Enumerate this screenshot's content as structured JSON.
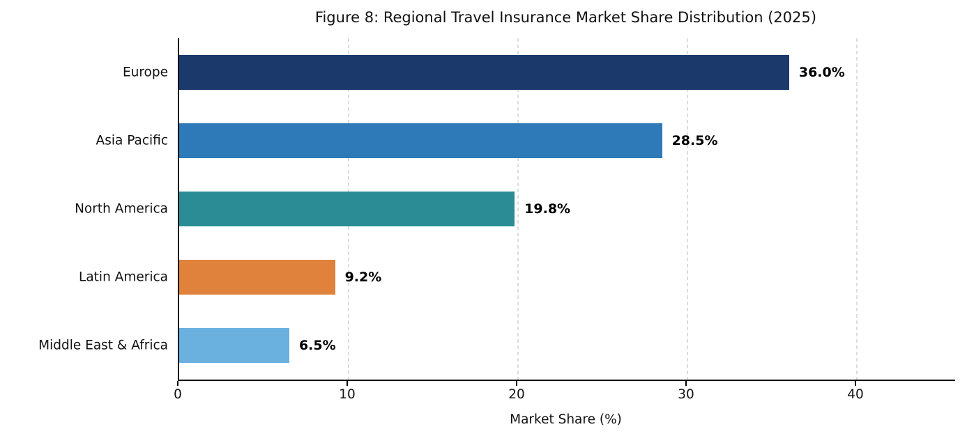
{
  "chart_data": {
    "type": "bar",
    "orientation": "horizontal",
    "title": "Figure 8: Regional Travel Insurance Market Share Distribution (2025)",
    "xlabel": "Market Share (%)",
    "ylabel": "",
    "categories": [
      "Europe",
      "Asia Pacific",
      "North America",
      "Latin America",
      "Middle East & Africa"
    ],
    "values": [
      36.0,
      28.5,
      19.8,
      9.2,
      6.5
    ],
    "value_labels": [
      "36.0%",
      "28.5%",
      "19.8%",
      "9.2%",
      "6.5%"
    ],
    "bar_colors": [
      "#1b3a6b",
      "#2e79b8",
      "#2b8c96",
      "#e0813c",
      "#6ab1e0"
    ],
    "xlim": [
      0,
      45.8
    ],
    "xticks": [
      0,
      10,
      20,
      30,
      40
    ],
    "grid": "vertical-dashed",
    "gridline_color": "#d9dde1",
    "legend": "none"
  }
}
